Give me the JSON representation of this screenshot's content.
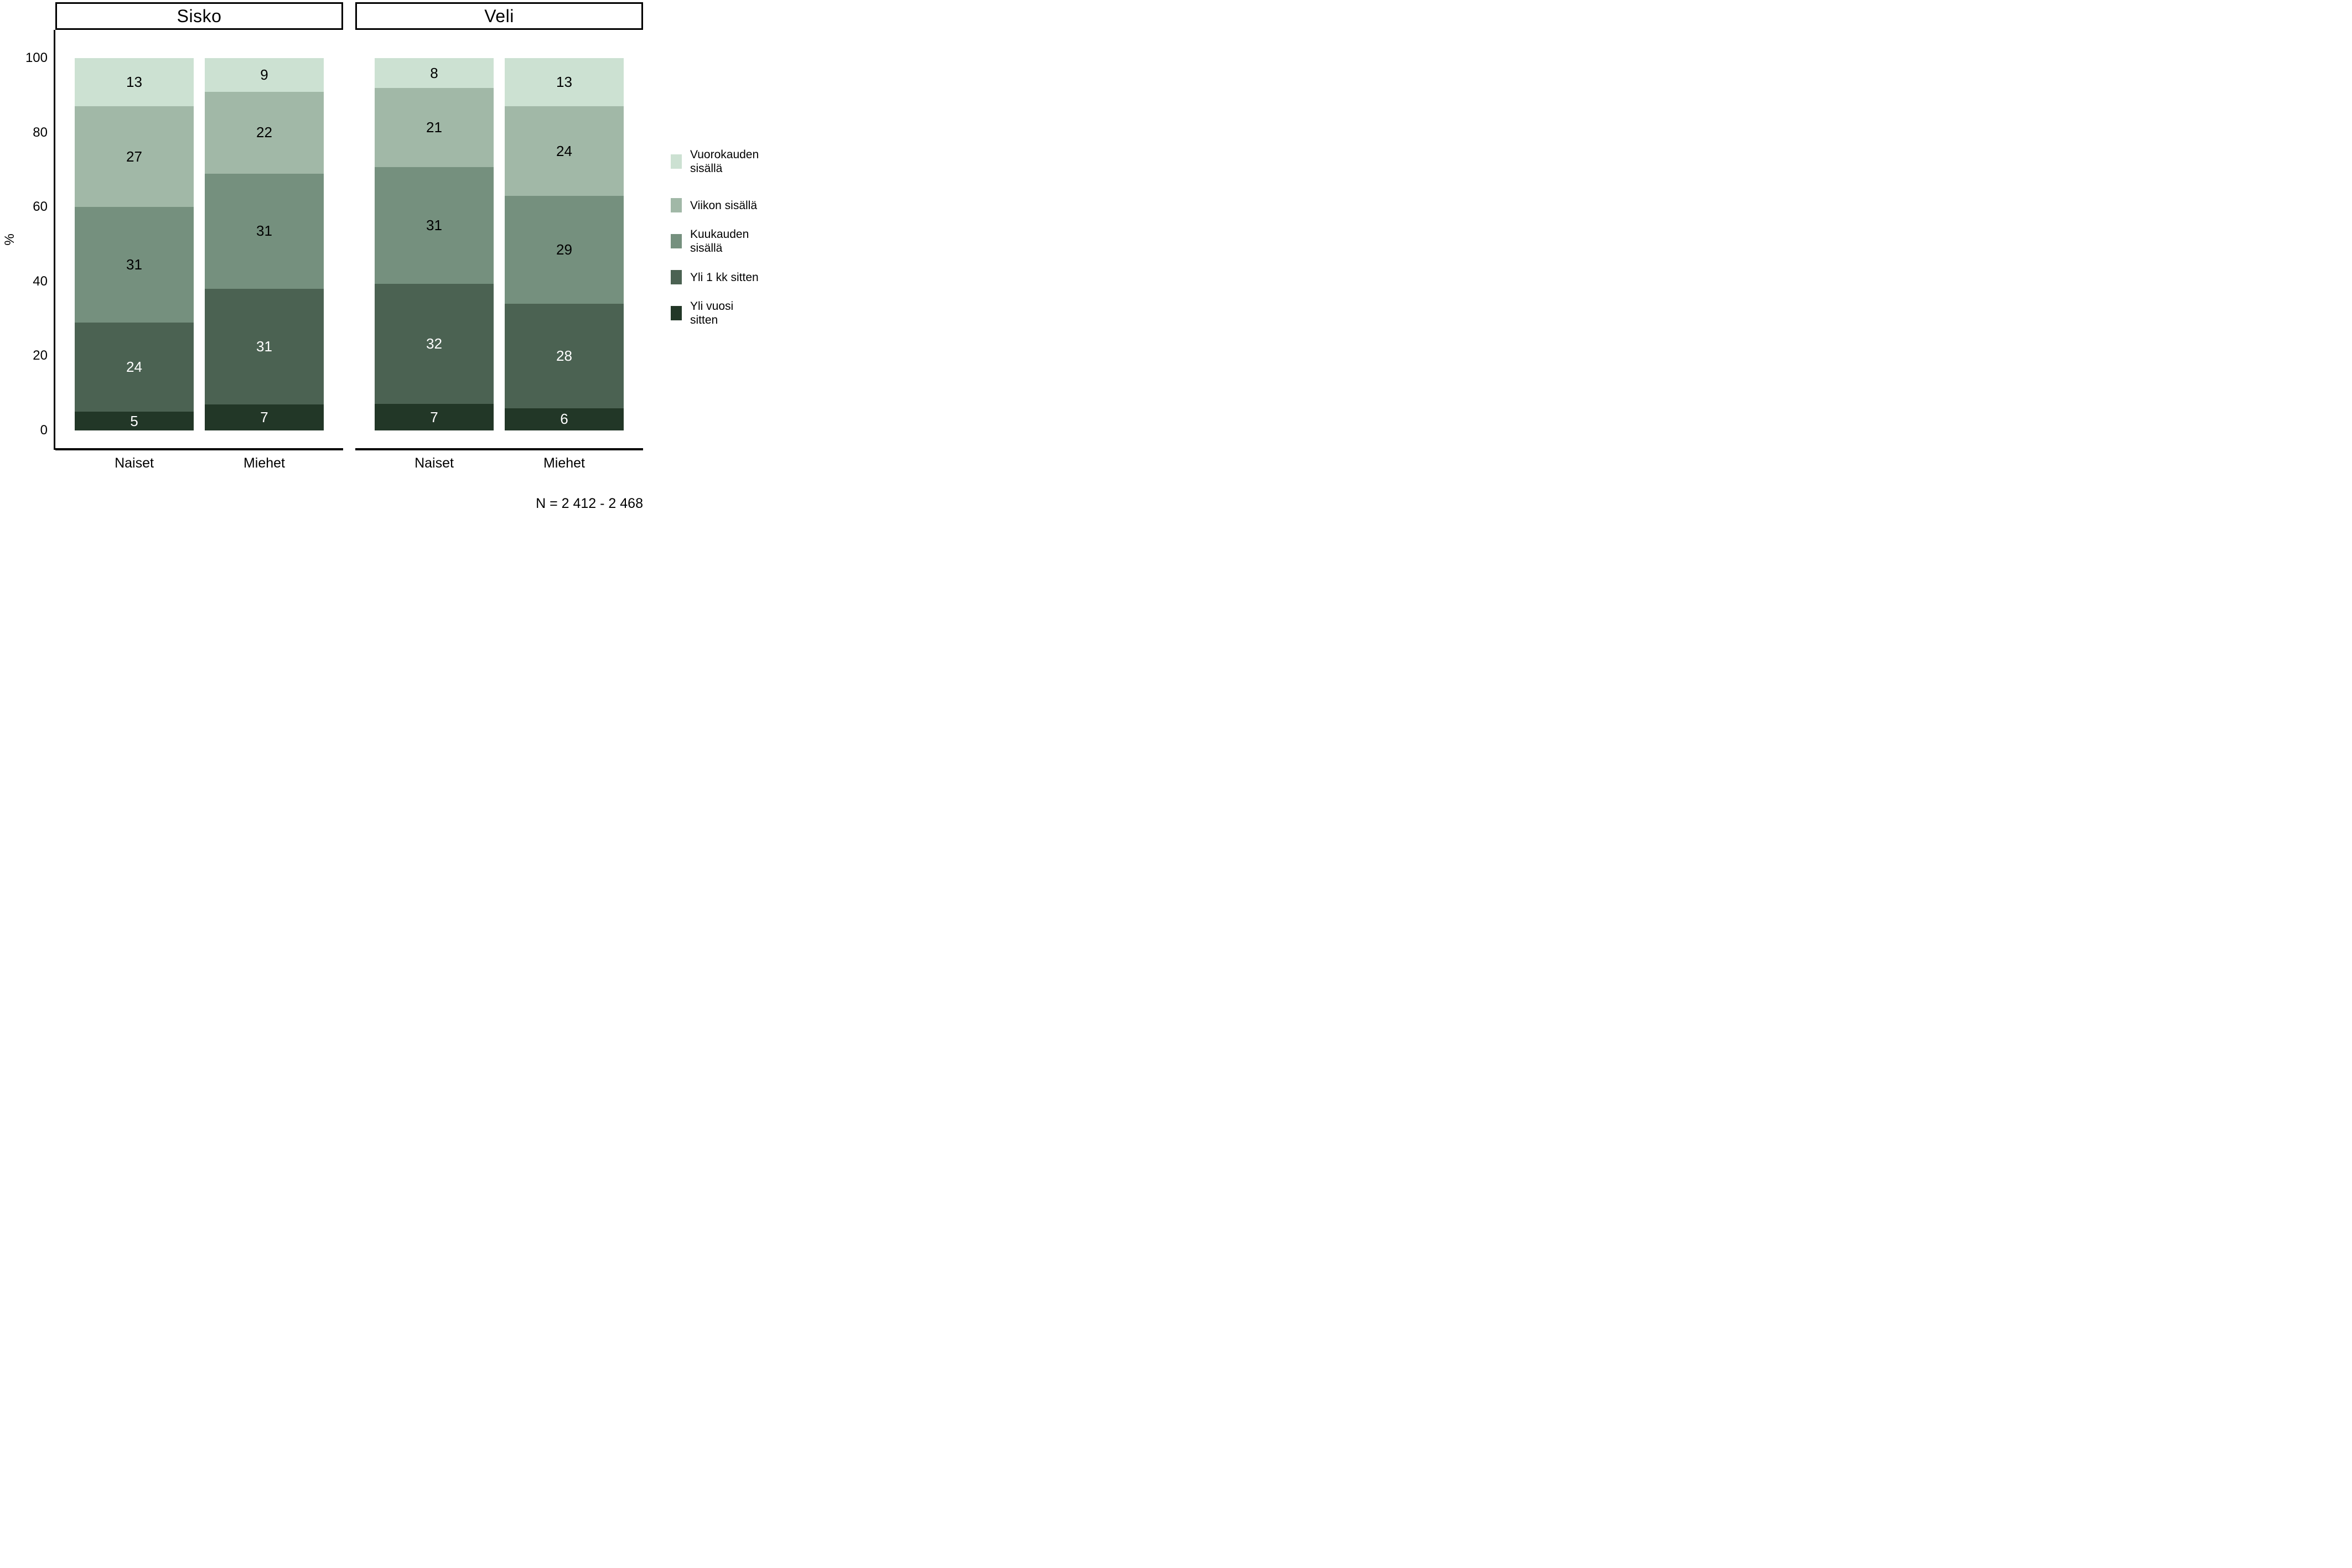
{
  "chart_data": {
    "type": "bar",
    "variant": "stacked-100-percent",
    "orientation": "vertical",
    "ylabel": "%",
    "ylim": [
      0,
      100
    ],
    "y_ticks": [
      100,
      80,
      60,
      40,
      20,
      0
    ],
    "grid": false,
    "legend_position": "right",
    "caption": "N = 2 412 - 2 468",
    "categories": [
      "Naiset",
      "Miehet"
    ],
    "legend": [
      {
        "id": "vuorokauden-sisalla",
        "label": "Vuorokauden\nsisällä",
        "color": "#cce1d2",
        "value_text_color": "#000000"
      },
      {
        "id": "viikon-sisalla",
        "label": "Viikon sisällä",
        "color": "#a1b8a7",
        "value_text_color": "#000000"
      },
      {
        "id": "kuukauden-sisalla",
        "label": "Kuukauden\nsisällä",
        "color": "#75907e",
        "value_text_color": "#000000"
      },
      {
        "id": "yli-1-kk-sitten",
        "label": "Yli 1 kk sitten",
        "color": "#4b6252",
        "value_text_color": "#ffffff"
      },
      {
        "id": "yli-vuosi-sitten",
        "label": "Yli vuosi\nsitten",
        "color": "#223727",
        "value_text_color": "#ffffff"
      }
    ],
    "facets": [
      {
        "label": "Sisko",
        "bars": [
          {
            "category": "Naiset",
            "segments": [
              13,
              27,
              31,
              24,
              5
            ]
          },
          {
            "category": "Miehet",
            "segments": [
              9,
              22,
              31,
              31,
              7
            ]
          }
        ]
      },
      {
        "label": "Veli",
        "bars": [
          {
            "category": "Naiset",
            "segments": [
              8,
              21,
              31,
              32,
              7
            ]
          },
          {
            "category": "Miehet",
            "segments": [
              13,
              24,
              29,
              28,
              6
            ]
          }
        ]
      }
    ]
  }
}
